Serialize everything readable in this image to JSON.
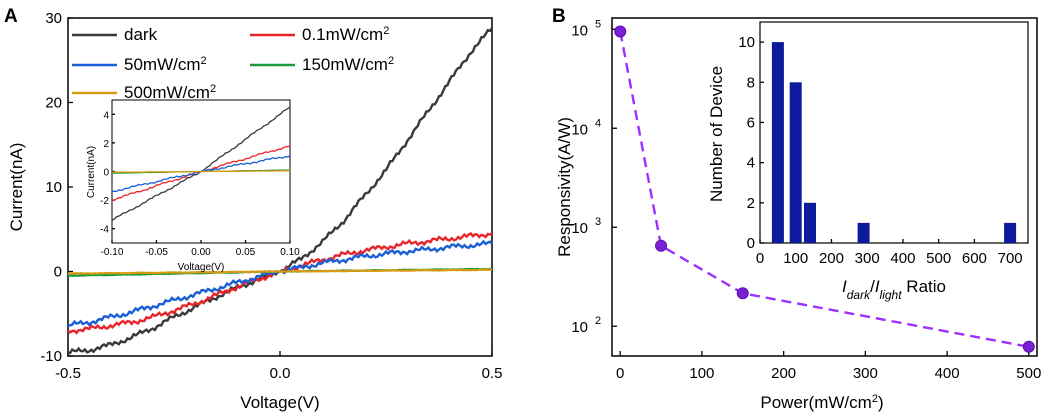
{
  "panels": {
    "a": {
      "label": "A"
    },
    "b": {
      "label": "B"
    }
  },
  "chart_data": [
    {
      "id": "A-main",
      "type": "line",
      "xlabel": "Voltage(V)",
      "ylabel": "Current(nA)",
      "xlim": [
        -0.5,
        0.5
      ],
      "ylim": [
        -10,
        30
      ],
      "xticks": [
        -0.5,
        0.0,
        0.5
      ],
      "xtick_labels": [
        "-0.5",
        "0.0",
        "0.5"
      ],
      "yticks": [
        -10,
        0,
        10,
        20,
        30
      ],
      "ytick_labels": [
        "-10",
        "0",
        "10",
        "20",
        "30"
      ],
      "legend": [
        {
          "text": "dark",
          "unit": "",
          "sup": "",
          "color": "#3a3a3a"
        },
        {
          "text": "0.1mW/cm",
          "unit": "",
          "sup": "2",
          "color": "#e8262a"
        },
        {
          "text": "50mW/cm",
          "unit": "",
          "sup": "2",
          "color": "#1b5fd6"
        },
        {
          "text": "150mW/cm",
          "unit": "",
          "sup": "2",
          "color": "#1d9a3c"
        },
        {
          "text": "500mW/cm",
          "unit": "",
          "sup": "2",
          "color": "#d89a12"
        }
      ],
      "series": [
        {
          "name": "dark",
          "color": "#3a3a3a",
          "x": [
            -0.5,
            -0.45,
            -0.4,
            -0.35,
            -0.3,
            -0.25,
            -0.2,
            -0.15,
            -0.1,
            -0.05,
            0,
            0.05,
            0.1,
            0.15,
            0.2,
            0.25,
            0.3,
            0.35,
            0.4,
            0.45,
            0.5
          ],
          "y": [
            -9.6,
            -9.3,
            -8.7,
            -7.8,
            -6.7,
            -5.4,
            -4.2,
            -3.0,
            -1.9,
            -0.9,
            0,
            1.5,
            3.5,
            6.0,
            9.0,
            12.0,
            15.5,
            19.0,
            22.5,
            26.0,
            28.8
          ]
        },
        {
          "name": "0.1mW/cm2",
          "color": "#e8262a",
          "x": [
            -0.5,
            -0.45,
            -0.4,
            -0.35,
            -0.3,
            -0.25,
            -0.2,
            -0.15,
            -0.1,
            -0.05,
            0,
            0.05,
            0.1,
            0.15,
            0.2,
            0.25,
            0.3,
            0.35,
            0.4,
            0.45,
            0.5
          ],
          "y": [
            -7.0,
            -6.8,
            -6.4,
            -6.0,
            -5.4,
            -4.6,
            -3.8,
            -2.8,
            -1.8,
            -0.9,
            0,
            0.7,
            1.4,
            2.0,
            2.5,
            2.9,
            3.3,
            3.6,
            3.9,
            4.2,
            4.5
          ]
        },
        {
          "name": "50mW/cm2",
          "color": "#1b5fd6",
          "x": [
            -0.5,
            -0.45,
            -0.4,
            -0.35,
            -0.3,
            -0.25,
            -0.2,
            -0.15,
            -0.1,
            -0.05,
            0,
            0.05,
            0.1,
            0.15,
            0.2,
            0.25,
            0.3,
            0.35,
            0.4,
            0.45,
            0.5
          ],
          "y": [
            -6.4,
            -6.0,
            -5.4,
            -4.8,
            -4.1,
            -3.4,
            -2.7,
            -2.0,
            -1.3,
            -0.6,
            0,
            0.5,
            1.0,
            1.4,
            1.8,
            2.1,
            2.4,
            2.6,
            2.9,
            3.1,
            3.3
          ]
        },
        {
          "name": "150mW/cm2",
          "color": "#1d9a3c",
          "x": [
            -0.5,
            0,
            0.5
          ],
          "y": [
            -0.5,
            0,
            0.3
          ]
        },
        {
          "name": "500mW/cm2",
          "color": "#d89a12",
          "x": [
            -0.5,
            0,
            0.5
          ],
          "y": [
            -0.25,
            0,
            0.2
          ]
        }
      ]
    },
    {
      "id": "A-inset",
      "type": "line",
      "xlabel": "Voltage(V)",
      "ylabel": "Current(nA)",
      "xlim": [
        -0.1,
        0.1
      ],
      "ylim": [
        -5,
        5
      ],
      "xticks": [
        -0.1,
        -0.05,
        0,
        0.05,
        0.1
      ],
      "xtick_labels": [
        "-0.10",
        "-0.05",
        "0.00",
        "0.05",
        "0.10"
      ],
      "yticks": [
        -4,
        -2,
        0,
        2,
        4
      ],
      "ytick_labels": [
        "-4",
        "-2",
        "0",
        "2",
        "4"
      ],
      "series": [
        {
          "name": "dark",
          "color": "#3a3a3a",
          "x": [
            -0.1,
            0,
            0.1
          ],
          "y": [
            -3.4,
            0,
            4.5
          ]
        },
        {
          "name": "0.1mW/cm2",
          "color": "#e8262a",
          "x": [
            -0.1,
            0,
            0.1
          ],
          "y": [
            -2.0,
            0,
            1.8
          ]
        },
        {
          "name": "50mW/cm2",
          "color": "#1b5fd6",
          "x": [
            -0.1,
            0,
            0.1
          ],
          "y": [
            -1.4,
            0,
            1.1
          ]
        },
        {
          "name": "150mW/cm2",
          "color": "#1d9a3c",
          "x": [
            -0.1,
            0,
            0.1
          ],
          "y": [
            -0.12,
            0,
            0.1
          ]
        },
        {
          "name": "500mW/cm2",
          "color": "#d89a12",
          "x": [
            -0.1,
            0,
            0.1
          ],
          "y": [
            -0.05,
            0,
            0.05
          ]
        }
      ]
    },
    {
      "id": "B-main",
      "type": "scatter",
      "xlabel": "Power(mW/cm",
      "xlabel_sup": "2",
      "xlabel_end": ")",
      "ylabel": "Responsivity(A/W)",
      "yscale": "log",
      "xlim": [
        -10,
        510
      ],
      "ylim": [
        50,
        130000
      ],
      "xticks": [
        0,
        100,
        200,
        300,
        400,
        500
      ],
      "xtick_labels": [
        "0",
        "100",
        "200",
        "300",
        "400",
        "500"
      ],
      "yticks": [
        100,
        1000,
        10000,
        100000
      ],
      "ytick_labels": [
        {
          "base": "10",
          "exp": "2"
        },
        {
          "base": "10",
          "exp": "3"
        },
        {
          "base": "10",
          "exp": "4"
        },
        {
          "base": "10",
          "exp": "5"
        }
      ],
      "series": [
        {
          "name": "Responsivity",
          "color": "#7b1fd6",
          "x": [
            0.1,
            50,
            150,
            500
          ],
          "y": [
            95000,
            650,
            215,
            62
          ]
        }
      ]
    },
    {
      "id": "B-inset",
      "type": "bar",
      "xlabel": {
        "i1": "I",
        "s1": "dark",
        "slash": "/",
        "i2": "I",
        "s2": "light",
        "tail": " Ratio"
      },
      "ylabel": "Number of Device",
      "xlim": [
        0,
        750
      ],
      "ylim": [
        0,
        11
      ],
      "xticks": [
        0,
        100,
        200,
        300,
        400,
        500,
        600,
        700
      ],
      "xtick_labels": [
        "0",
        "100",
        "200",
        "300",
        "400",
        "500",
        "600",
        "700"
      ],
      "yticks": [
        0,
        2,
        4,
        6,
        8,
        10
      ],
      "ytick_labels": [
        "0",
        "2",
        "4",
        "6",
        "8",
        "10"
      ],
      "bar_color": "#0d1a9e",
      "bars": [
        {
          "x": 50,
          "value": 10
        },
        {
          "x": 100,
          "value": 8
        },
        {
          "x": 140,
          "value": 2
        },
        {
          "x": 290,
          "value": 1
        },
        {
          "x": 700,
          "value": 1
        }
      ]
    }
  ]
}
